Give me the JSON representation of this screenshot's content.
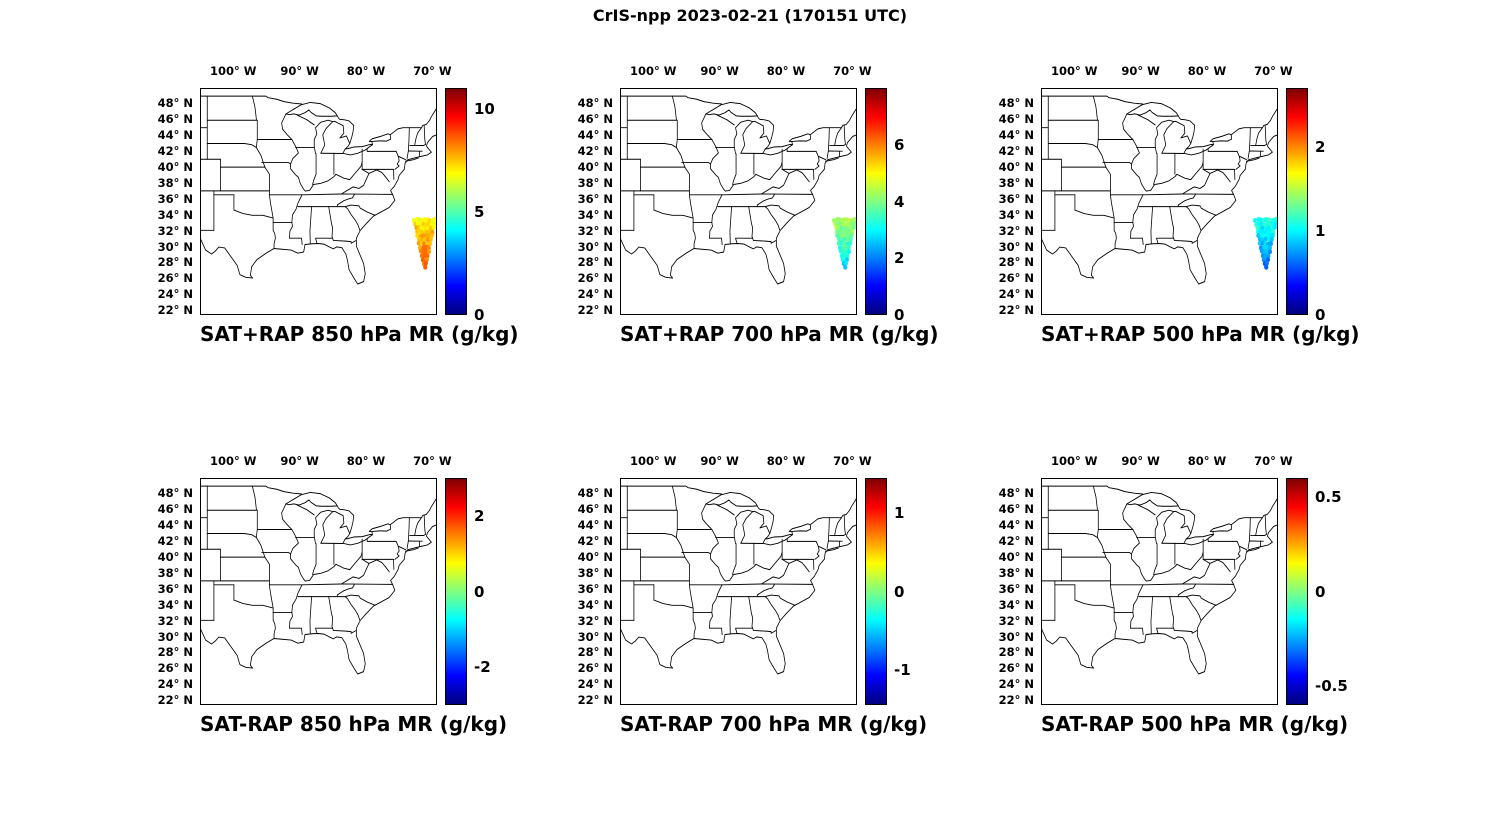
{
  "figure": {
    "title": "CrIS-npp 2023-02-21 (170151 UTC)",
    "instrument": "CrIS-npp",
    "date": "2023-02-21",
    "time": "170151 UTC"
  },
  "axes": {
    "lon_labels": [
      "100° W",
      "90° W",
      "80° W",
      "70° W"
    ],
    "lon_deg_west": [
      100,
      90,
      80,
      70
    ],
    "lat_labels": [
      "48° N",
      "46° N",
      "44° N",
      "42° N",
      "40° N",
      "38° N",
      "36° N",
      "34° N",
      "32° N",
      "30° N",
      "28° N",
      "26° N",
      "24° N",
      "22° N"
    ],
    "lat_deg_north": [
      48,
      46,
      44,
      42,
      40,
      38,
      36,
      34,
      32,
      30,
      28,
      26,
      24,
      22
    ],
    "lon_range_deg_west": [
      105,
      69.3
    ],
    "lat_range_deg_north": [
      21.4,
      49.9
    ]
  },
  "chart_data": {
    "type": "scatter",
    "subtype": "map-scatter-grid",
    "colormap": "jet",
    "grid": {
      "rows": 2,
      "cols": 3
    },
    "region": "Eastern and Central United States with state boundaries",
    "panels": [
      {
        "title": "SAT+RAP 850 hPa MR (g/kg)",
        "cmin": 0,
        "cmax": 11,
        "cticks": [
          0,
          5,
          10
        ],
        "ctick_labels": [
          "0",
          "5",
          "10"
        ],
        "swath": {
          "lat_top_n": 33.3,
          "lat_bottom_n": 27.3,
          "lon_center_w": 71.0,
          "half_width_top_deg": 1.8,
          "half_width_bottom_deg": 0.25,
          "value_top": 7.0,
          "value_bottom": 8.8,
          "value_spread": 1.1
        }
      },
      {
        "title": "SAT+RAP 700 hPa MR (g/kg)",
        "cmin": 0,
        "cmax": 8,
        "cticks": [
          0,
          2,
          4,
          6
        ],
        "ctick_labels": [
          "0",
          "2",
          "4",
          "6"
        ],
        "swath": {
          "lat_top_n": 33.3,
          "lat_bottom_n": 27.3,
          "lon_center_w": 71.0,
          "half_width_top_deg": 1.8,
          "half_width_bottom_deg": 0.25,
          "value_top": 4.4,
          "value_bottom": 2.7,
          "value_spread": 0.7
        }
      },
      {
        "title": "SAT+RAP 500 hPa MR (g/kg)",
        "cmin": 0,
        "cmax": 2.7,
        "cticks": [
          0,
          1,
          2
        ],
        "ctick_labels": [
          "0",
          "1",
          "2"
        ],
        "swath": {
          "lat_top_n": 33.3,
          "lat_bottom_n": 27.3,
          "lon_center_w": 71.0,
          "half_width_top_deg": 1.8,
          "half_width_bottom_deg": 0.25,
          "value_top": 1.12,
          "value_bottom": 0.62,
          "value_spread": 0.25
        }
      },
      {
        "title": "SAT-RAP 850 hPa MR (g/kg)",
        "cmin": -3,
        "cmax": 3,
        "cticks": [
          -2,
          0,
          2
        ],
        "ctick_labels": [
          "-2",
          "0",
          "2"
        ],
        "swath": null
      },
      {
        "title": "SAT-RAP 700 hPa MR (g/kg)",
        "cmin": -1.45,
        "cmax": 1.45,
        "cticks": [
          -1,
          0,
          1
        ],
        "ctick_labels": [
          "-1",
          "0",
          "1"
        ],
        "swath": null
      },
      {
        "title": "SAT-RAP 500 hPa MR (g/kg)",
        "cmin": -0.6,
        "cmax": 0.6,
        "cticks": [
          -0.5,
          0,
          0.5
        ],
        "ctick_labels": [
          "-0.5",
          "0",
          "0.5"
        ],
        "swath": null
      }
    ]
  }
}
